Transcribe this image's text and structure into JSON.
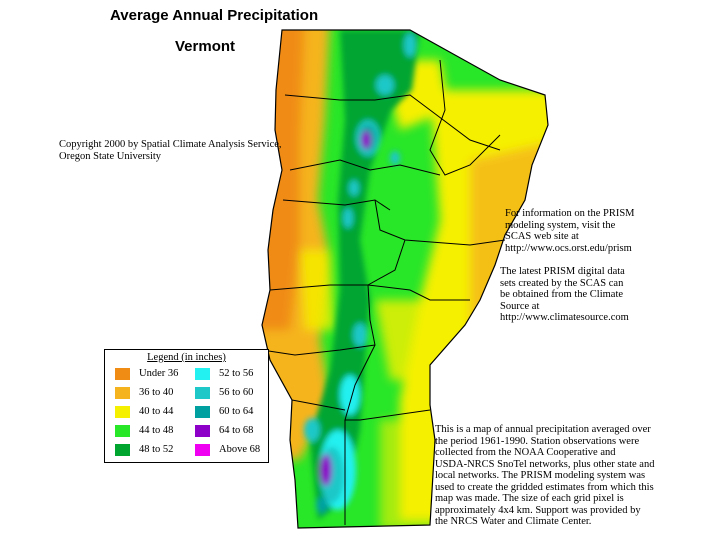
{
  "map": {
    "title": "Average Annual Precipitation",
    "state": "Vermont",
    "copyright": "Copyright 2000 by Spatial Climate Analysis Service,\nOregon State University",
    "prism_info": "For information on the PRISM\nmodeling system, visit the\nSCAS web site at\nhttp://www.ocs.orst.edu/prism",
    "data_info": "The latest PRISM digital data\nsets created by the SCAS can\nbe obtained from the Climate\nSource at\nhttp://www.climatesource.com",
    "description": "This is a map of annual precipitation averaged over\nthe period 1961-1990. Station observations were\ncollected from the NOAA Cooperative and\nUSDA-NRCS SnoTel networks, plus other state and\nlocal networks. The PRISM modeling system was\nused to create the gridded estimates from which this\nmap was made. The size of each grid pixel is\napproximately 4x4 km. Support was provided by\nthe NRCS Water and Climate Center."
  },
  "legend": {
    "title": "Legend (in inches)",
    "items": [
      {
        "label": "Under 36",
        "color": "#f08c14"
      },
      {
        "label": "36 to 40",
        "color": "#f5b41e"
      },
      {
        "label": "40 to 44",
        "color": "#f5f000"
      },
      {
        "label": "44 to 48",
        "color": "#28e628"
      },
      {
        "label": "48 to 52",
        "color": "#00a530"
      },
      {
        "label": "52 to 56",
        "color": "#23f0f0"
      },
      {
        "label": "56 to 60",
        "color": "#1ec8c8"
      },
      {
        "label": "60 to 64",
        "color": "#00a0a0"
      },
      {
        "label": "64 to 68",
        "color": "#8c00c8"
      },
      {
        "label": "Above 68",
        "color": "#f000f0"
      }
    ]
  }
}
